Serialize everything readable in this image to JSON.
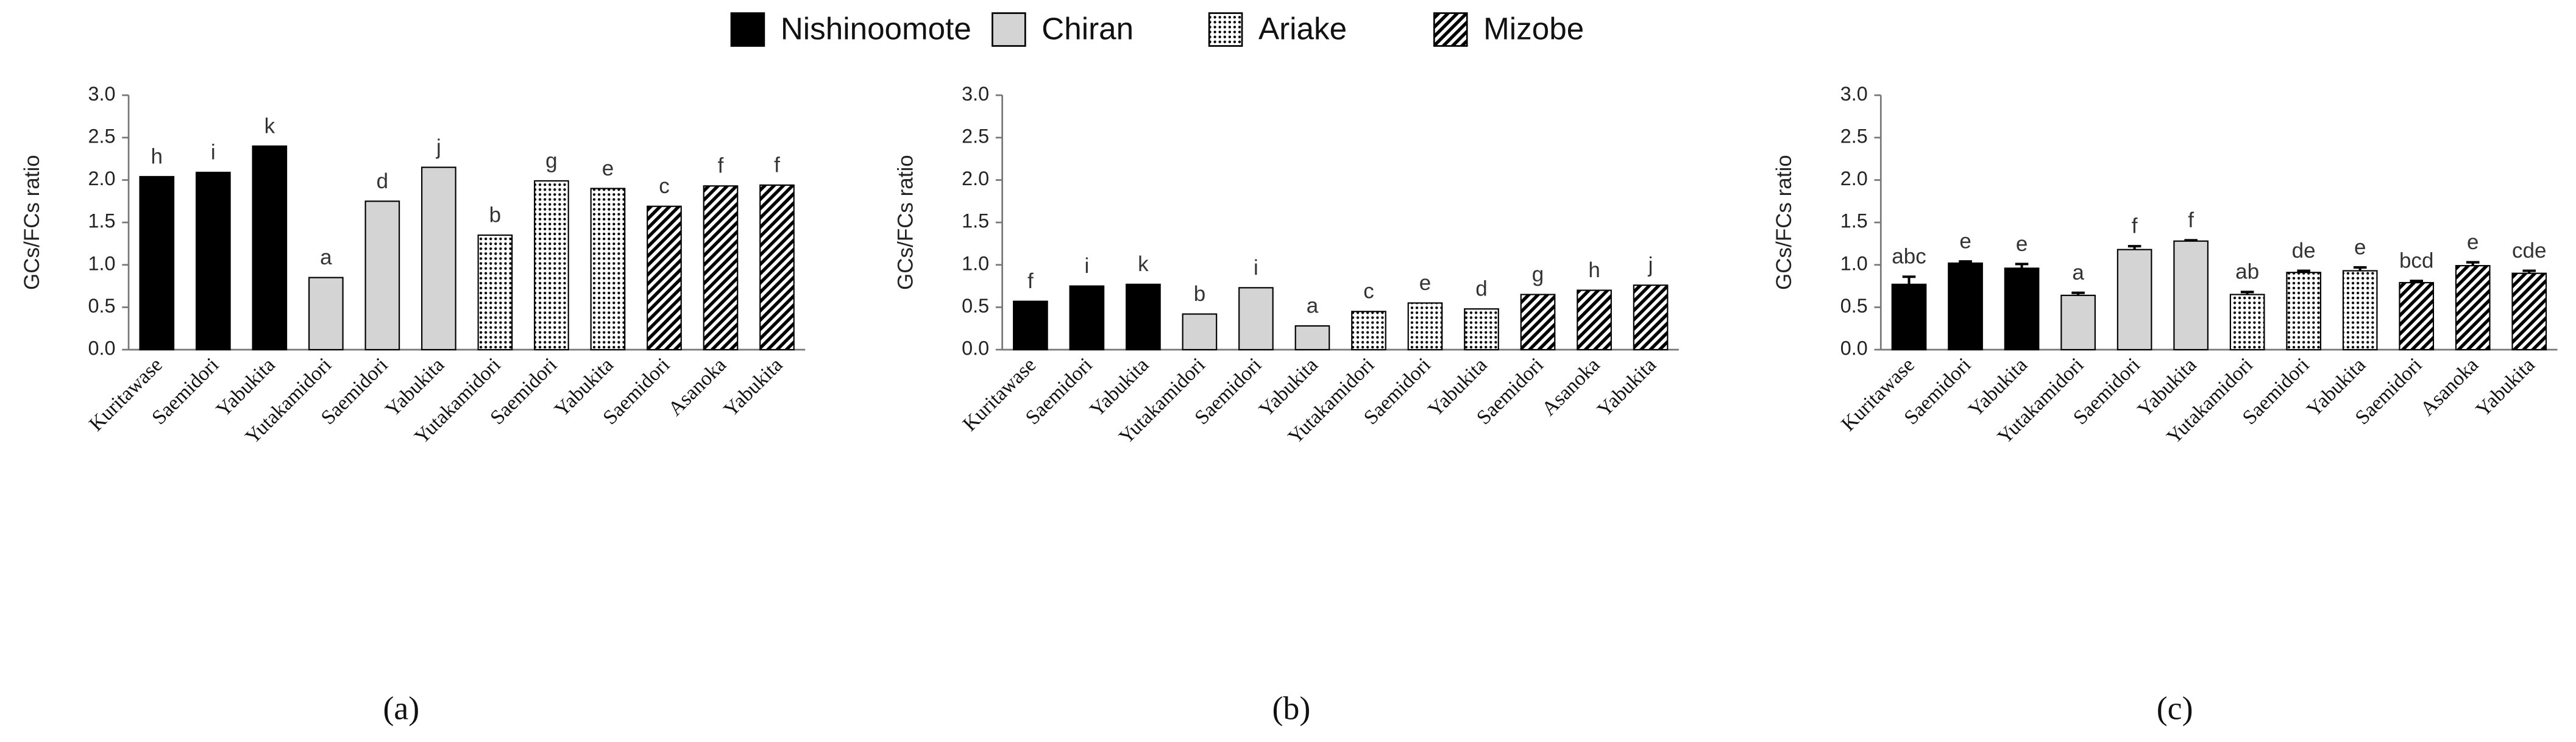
{
  "chart_data": [
    {
      "type": "bar",
      "caption": "(a)",
      "ylabel": "GCs/FCs ratio",
      "categories": [
        "Kuritawase",
        "Saemidori",
        "Yabukita",
        "Yutakamidori",
        "Saemidori",
        "Yabukita",
        "Yutakamidori",
        "Saemidori",
        "Yabukita",
        "Saemidori",
        "Asanoka",
        "Yabukita"
      ],
      "letters": [
        "h",
        "i",
        "k",
        "a",
        "d",
        "j",
        "b",
        "g",
        "e",
        "c",
        "f",
        "f"
      ],
      "series": [
        {
          "name": "Nishinoomote",
          "pattern": "black",
          "values": [
            2.04,
            2.09,
            2.4,
            null,
            null,
            null,
            null,
            null,
            null,
            null,
            null,
            null
          ]
        },
        {
          "name": "Chiran",
          "pattern": "gray",
          "values": [
            null,
            null,
            null,
            0.85,
            1.75,
            2.15,
            null,
            null,
            null,
            null,
            null,
            null
          ]
        },
        {
          "name": "Ariake",
          "pattern": "dots",
          "values": [
            null,
            null,
            null,
            null,
            null,
            null,
            1.35,
            1.99,
            1.9,
            null,
            null,
            null
          ]
        },
        {
          "name": "Mizobe",
          "pattern": "hatch",
          "values": [
            null,
            null,
            null,
            null,
            null,
            null,
            null,
            null,
            null,
            1.69,
            1.93,
            1.94
          ]
        }
      ],
      "ylim": [
        0,
        3
      ],
      "yticks": [
        {
          "value": 0,
          "label": "0.0"
        },
        {
          "value": 0.5,
          "label": "0.5"
        },
        {
          "value": 1,
          "label": "1.0"
        },
        {
          "value": 1.5,
          "label": "1.5"
        },
        {
          "value": 2,
          "label": "2.0"
        },
        {
          "value": 2.5,
          "label": "2.5"
        },
        {
          "value": 3,
          "label": "3.0"
        }
      ]
    },
    {
      "type": "bar",
      "caption": "(b)",
      "ylabel": "GCs/FCs ratio",
      "categories": [
        "Kuritawase",
        "Saemidori",
        "Yabukita",
        "Yutakamidori",
        "Saemidori",
        "Yabukita",
        "Yutakamidori",
        "Saemidori",
        "Yabukita",
        "Saemidori",
        "Asanoka",
        "Yabukita"
      ],
      "letters": [
        "f",
        "i",
        "k",
        "b",
        "i",
        "a",
        "c",
        "e",
        "d",
        "g",
        "h",
        "j"
      ],
      "series": [
        {
          "pattern": "black",
          "values": [
            0.57,
            0.75,
            0.77,
            null,
            null,
            null,
            null,
            null,
            null,
            null,
            null,
            null
          ]
        },
        {
          "pattern": "gray",
          "values": [
            null,
            null,
            null,
            0.42,
            0.73,
            0.28,
            null,
            null,
            null,
            null,
            null,
            null
          ]
        },
        {
          "pattern": "dots",
          "values": [
            null,
            null,
            null,
            null,
            null,
            null,
            0.45,
            0.55,
            0.48,
            null,
            null,
            null
          ]
        },
        {
          "pattern": "hatch",
          "values": [
            null,
            null,
            null,
            null,
            null,
            null,
            null,
            null,
            null,
            0.65,
            0.7,
            0.76
          ]
        }
      ],
      "ylim": [
        0,
        3
      ],
      "yticks": [
        {
          "value": 0,
          "label": "0.0"
        },
        {
          "value": 0.5,
          "label": "0.5"
        },
        {
          "value": 1,
          "label": "1.0"
        },
        {
          "value": 1.5,
          "label": "1.5"
        },
        {
          "value": 2,
          "label": "2.0"
        },
        {
          "value": 2.5,
          "label": "2.5"
        },
        {
          "value": 3,
          "label": "3.0"
        }
      ]
    },
    {
      "type": "bar",
      "caption": "(c)",
      "ylabel": "GCs/FCs ratio",
      "categories": [
        "Kuritawase",
        "Saemidori",
        "Yabukita",
        "Yutakamidori",
        "Saemidori",
        "Yabukita",
        "Yutakamidori",
        "Saemidori",
        "Yabukita",
        "Saemidori",
        "Asanoka",
        "Yabukita"
      ],
      "letters": [
        "abc",
        "e",
        "e",
        "a",
        "f",
        "f",
        "ab",
        "de",
        "e",
        "bcd",
        "e",
        "cde"
      ],
      "series": [
        {
          "pattern": "black",
          "values": [
            0.77,
            1.02,
            0.96,
            null,
            null,
            null,
            null,
            null,
            null,
            null,
            null,
            null
          ],
          "errors": [
            0.09,
            0.02,
            0.05,
            null,
            null,
            null,
            null,
            null,
            null,
            null,
            null,
            null
          ]
        },
        {
          "pattern": "gray",
          "values": [
            null,
            null,
            null,
            0.64,
            1.18,
            1.28,
            null,
            null,
            null,
            null,
            null,
            null
          ],
          "errors": [
            null,
            null,
            null,
            0.03,
            0.04,
            0.01,
            null,
            null,
            null,
            null,
            null,
            null
          ]
        },
        {
          "pattern": "dots",
          "values": [
            null,
            null,
            null,
            null,
            null,
            null,
            0.65,
            0.91,
            0.93,
            null,
            null,
            null
          ],
          "errors": [
            null,
            null,
            null,
            null,
            null,
            null,
            0.03,
            0.02,
            0.04,
            null,
            null,
            null
          ]
        },
        {
          "pattern": "hatch",
          "values": [
            null,
            null,
            null,
            null,
            null,
            null,
            null,
            null,
            null,
            0.79,
            0.99,
            0.9
          ],
          "errors": [
            null,
            null,
            null,
            null,
            null,
            null,
            null,
            null,
            null,
            0.02,
            0.04,
            0.03
          ]
        }
      ],
      "ylim": [
        0,
        3
      ],
      "yticks": [
        {
          "value": 0,
          "label": "0.0"
        },
        {
          "value": 0.5,
          "label": "0.5"
        },
        {
          "value": 1,
          "label": "1.0"
        },
        {
          "value": 1.5,
          "label": "1.5"
        },
        {
          "value": 2,
          "label": "2.0"
        },
        {
          "value": 2.5,
          "label": "2.5"
        },
        {
          "value": 3,
          "label": "3.0"
        }
      ]
    }
  ]
}
